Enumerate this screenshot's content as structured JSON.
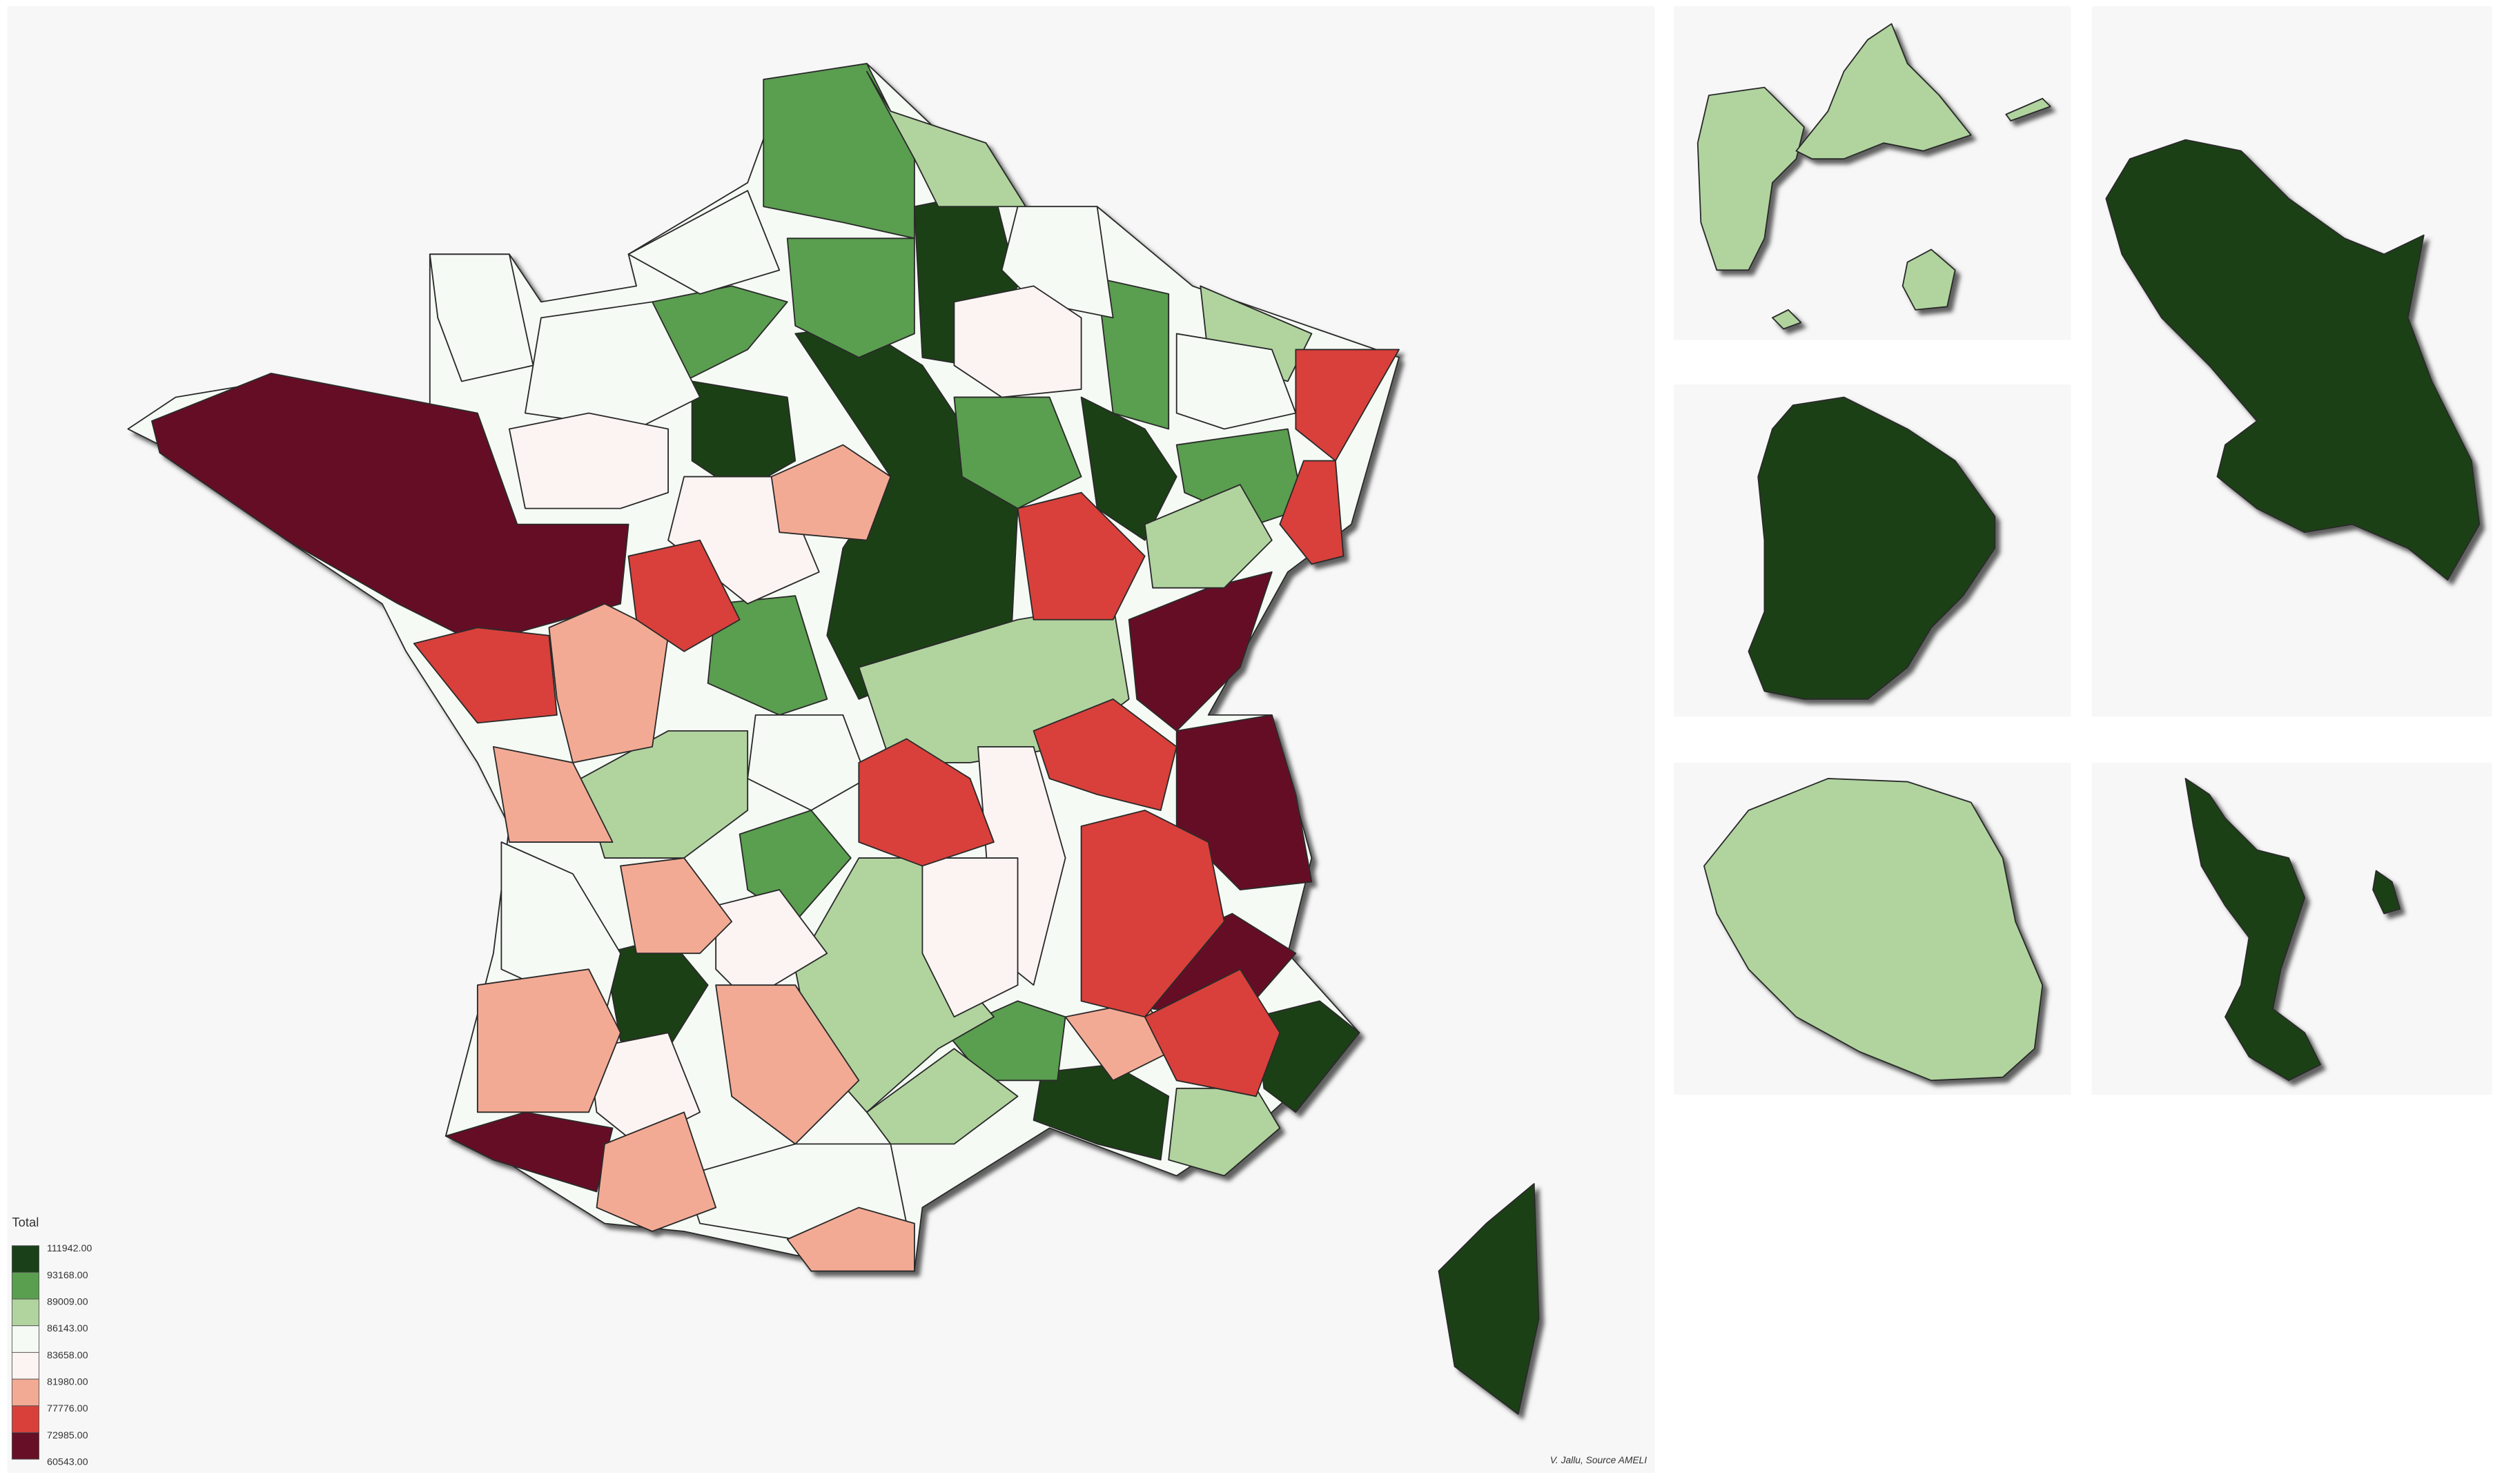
{
  "legend": {
    "title": "Total",
    "breaks": [
      "111942.00",
      "93168.00",
      "89009.00",
      "86143.00",
      "83658.00",
      "81980.00",
      "77776.00",
      "72985.00",
      "60543.00"
    ],
    "colors": [
      "#1a4019",
      "#5a9e4f",
      "#b1d49f",
      "#f5faf4",
      "#fcf4f2",
      "#f3aa94",
      "#d9403a",
      "#660f27"
    ]
  },
  "credit": "V. Jallu, Source AMELI"
}
